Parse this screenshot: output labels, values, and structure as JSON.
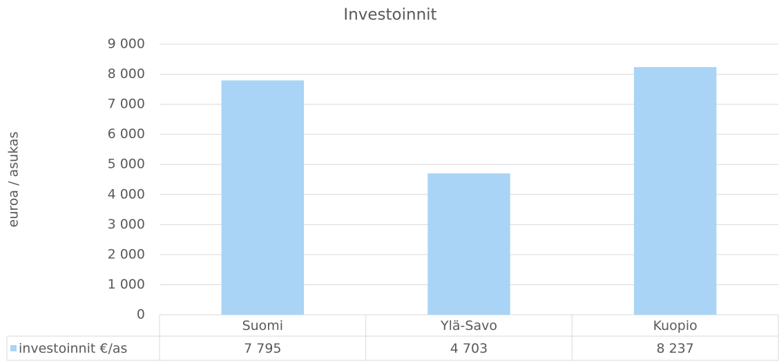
{
  "chart_data": {
    "type": "bar",
    "title": "Investoinnit",
    "y_label": "euroa / asukas",
    "categories": [
      "Suomi",
      "Ylä-Savo",
      "Kuopio"
    ],
    "series": [
      {
        "name": "investoinnit €/as",
        "color": "#a9d4f5",
        "values": [
          7795,
          4703,
          8237
        ],
        "value_labels": [
          "7 795",
          "4 703",
          "8 237"
        ]
      }
    ],
    "ylim": [
      0,
      9000
    ],
    "yticks": [
      0,
      {
        "value": 1000,
        "label": "1 000"
      },
      {
        "value": 2000,
        "label": "2 000"
      },
      {
        "value": 3000,
        "label": "3 000"
      },
      {
        "value": 4000,
        "label": "4 000"
      },
      {
        "value": 5000,
        "label": "5 000"
      },
      {
        "value": 6000,
        "label": "6 000"
      },
      {
        "value": 7000,
        "label": "7 000"
      },
      {
        "value": 8000,
        "label": "8 000"
      },
      {
        "value": 9000,
        "label": "9 000"
      }
    ],
    "grid": true,
    "data_table": true
  }
}
